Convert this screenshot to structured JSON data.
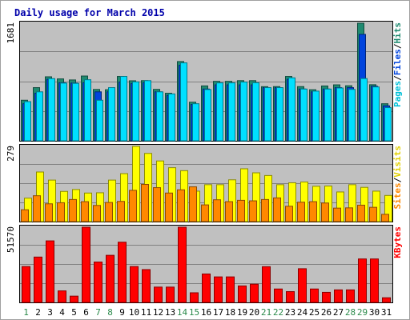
{
  "chart_data": {
    "type": "bar",
    "title": "Daily usage for March 2015",
    "categories": [
      "1",
      "2",
      "3",
      "4",
      "5",
      "6",
      "7",
      "8",
      "9",
      "10",
      "11",
      "12",
      "13",
      "14",
      "15",
      "16",
      "17",
      "18",
      "19",
      "20",
      "21",
      "22",
      "23",
      "24",
      "25",
      "26",
      "27",
      "28",
      "29",
      "30",
      "31"
    ],
    "weekend_days": [
      "1",
      "7",
      "8",
      "14",
      "15",
      "21",
      "22",
      "28",
      "29"
    ],
    "panels": [
      {
        "id": "pages-files-hits",
        "ymax": 1681,
        "ymax_label": "1681",
        "legend": [
          "Pages",
          "/",
          "Files",
          "/",
          "Hits"
        ],
        "series": [
          {
            "name": "Hits",
            "color": "#1f8a70",
            "values": [
              580,
              760,
              915,
              885,
              870,
              926,
              734,
              730,
              920,
              858,
              860,
              735,
              680,
              1133,
              552,
              785,
              850,
              850,
              860,
              860,
              774,
              775,
              920,
              775,
              730,
              784,
              800,
              787,
              1681,
              802,
              530
            ]
          },
          {
            "name": "Files",
            "color": "#0044dd",
            "values": [
              530,
              680,
              880,
              830,
              825,
              830,
              700,
              700,
              840,
              820,
              830,
              700,
              650,
              1080,
              520,
              740,
              800,
              800,
              800,
              800,
              760,
              760,
              880,
              740,
              700,
              740,
              760,
              760,
              1521,
              780,
              500
            ]
          },
          {
            "name": "Pages",
            "color": "#00e0ff",
            "values": [
              560,
              700,
              889,
              825,
              821,
              873,
              580,
              760,
              920,
              843,
              860,
              700,
              670,
              1114,
              530,
              733,
              828,
              828,
              840,
              830,
              760,
              760,
              900,
              740,
              710,
              740,
              755,
              735,
              890,
              770,
              474
            ]
          }
        ]
      },
      {
        "id": "visits-sites",
        "ymax": 279,
        "ymax_label": "279",
        "legend": [
          "Sites",
          "/",
          "Visits"
        ],
        "series": [
          {
            "name": "Visits",
            "color": "#ffff00",
            "values": [
              87,
              184,
              154,
              112,
              119,
              106,
              107,
              154,
              178,
              279,
              253,
              225,
              200,
              189,
              113,
              137,
              137,
              155,
              196,
              181,
              171,
              137,
              144,
              147,
              131,
              132,
              110,
              137,
              127,
              113,
              97
            ]
          },
          {
            "name": "Sites",
            "color": "#ff8800",
            "values": [
              44,
              96,
              66,
              70,
              82,
              74,
              60,
              71,
              75,
              116,
              138,
              126,
              106,
              118,
              129,
              62,
              81,
              74,
              79,
              77,
              82,
              88,
              57,
              72,
              74,
              69,
              50,
              51,
              61,
              53,
              27
            ]
          }
        ]
      },
      {
        "id": "kbytes",
        "ymax": 51570,
        "ymax_label": "51570",
        "legend": [
          "KBytes"
        ],
        "series": [
          {
            "name": "KBytes",
            "color": "#ff0000",
            "values": [
              24600,
              31100,
              42200,
              7900,
              4300,
              51570,
              27700,
              32300,
              41300,
              24600,
              22500,
              10500,
              10500,
              51570,
              6600,
              19500,
              17500,
              17500,
              11300,
              12500,
              24500,
              9200,
              7400,
              23100,
              9200,
              6900,
              8600,
              8600,
              29800,
              29800,
              3200
            ]
          }
        ]
      }
    ]
  }
}
